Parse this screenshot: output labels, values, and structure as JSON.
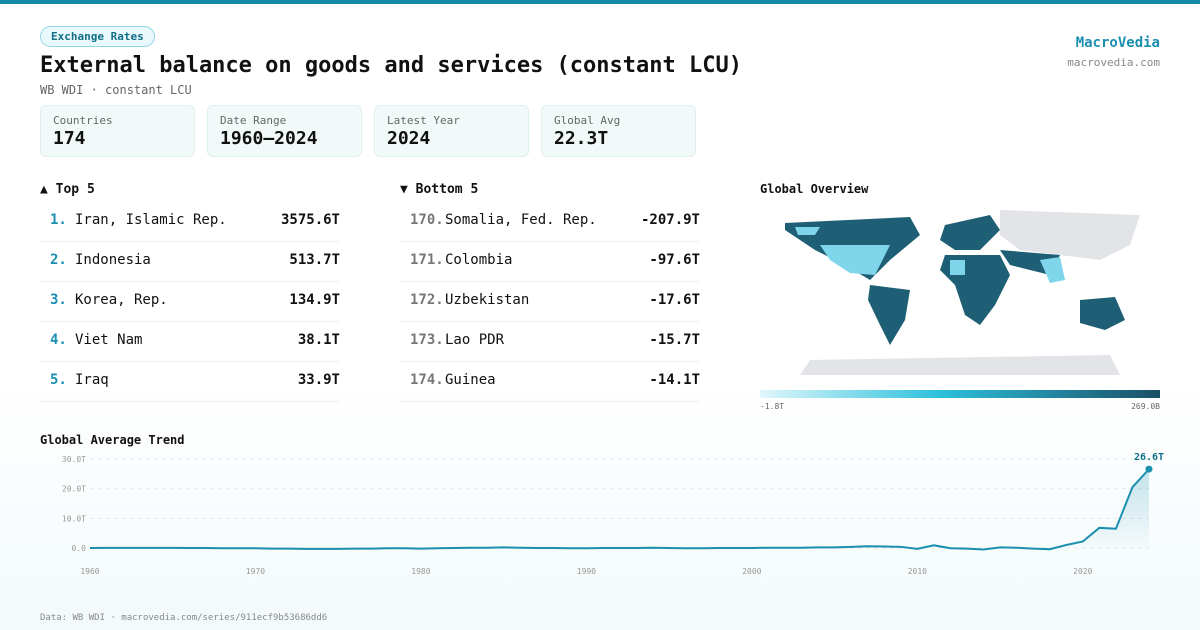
{
  "header": {
    "badge": "Exchange Rates",
    "title": "External balance on goods and services (constant LCU)",
    "subtitle": "WB WDI · constant LCU",
    "brand": "MacroVedia",
    "site": "macrovedia.com"
  },
  "stats": [
    {
      "label": "Countries",
      "value": "174"
    },
    {
      "label": "Date Range",
      "value": "1960–2024"
    },
    {
      "label": "Latest Year",
      "value": "2024"
    },
    {
      "label": "Global Avg",
      "value": "22.3T"
    }
  ],
  "top": {
    "title": "▲ Top 5",
    "rows": [
      {
        "rank": "1.",
        "name": "Iran, Islamic Rep.",
        "value": "3575.6T"
      },
      {
        "rank": "2.",
        "name": "Indonesia",
        "value": "513.7T"
      },
      {
        "rank": "3.",
        "name": "Korea, Rep.",
        "value": "134.9T"
      },
      {
        "rank": "4.",
        "name": "Viet Nam",
        "value": "38.1T"
      },
      {
        "rank": "5.",
        "name": "Iraq",
        "value": "33.9T"
      }
    ]
  },
  "bottom": {
    "title": "▼ Bottom 5",
    "rows": [
      {
        "rank": "170.",
        "name": "Somalia, Fed. Rep.",
        "value": "-207.9T"
      },
      {
        "rank": "171.",
        "name": "Colombia",
        "value": "-97.6T"
      },
      {
        "rank": "172.",
        "name": "Uzbekistan",
        "value": "-17.6T"
      },
      {
        "rank": "173.",
        "name": "Lao PDR",
        "value": "-15.7T"
      },
      {
        "rank": "174.",
        "name": "Guinea",
        "value": "-14.1T"
      }
    ]
  },
  "map": {
    "title": "Global Overview",
    "min_label": "-1.8T",
    "max_label": "269.0B"
  },
  "chart_data": {
    "type": "line",
    "title": "Global Average Trend",
    "color": "#1a8fb0",
    "x": [
      1960,
      1961,
      1962,
      1963,
      1964,
      1965,
      1966,
      1967,
      1968,
      1969,
      1970,
      1971,
      1972,
      1973,
      1974,
      1975,
      1976,
      1977,
      1978,
      1979,
      1980,
      1981,
      1982,
      1983,
      1984,
      1985,
      1986,
      1987,
      1988,
      1989,
      1990,
      1991,
      1992,
      1993,
      1994,
      1995,
      1996,
      1997,
      1998,
      1999,
      2000,
      2001,
      2002,
      2003,
      2004,
      2005,
      2006,
      2007,
      2008,
      2009,
      2010,
      2011,
      2012,
      2013,
      2014,
      2015,
      2016,
      2017,
      2018,
      2019,
      2020,
      2021,
      2022,
      2023,
      2024
    ],
    "values": [
      0,
      0.05,
      0.05,
      0.05,
      0.05,
      0.05,
      0,
      0,
      -0.1,
      -0.1,
      -0.1,
      -0.2,
      -0.2,
      -0.3,
      -0.3,
      -0.3,
      -0.2,
      -0.2,
      -0.1,
      -0.1,
      -0.2,
      -0.1,
      0,
      0.1,
      0.1,
      0.2,
      0.1,
      0,
      0,
      -0.1,
      -0.1,
      0,
      0,
      0,
      0.1,
      0,
      -0.1,
      -0.1,
      0,
      0,
      0,
      0.1,
      0.1,
      0.1,
      0.2,
      0.2,
      0.4,
      0.6,
      0.5,
      0.4,
      -0.3,
      0.9,
      -0.1,
      -0.2,
      -0.5,
      0.2,
      0.1,
      -0.2,
      -0.4,
      1.0,
      2.2,
      6.8,
      6.5,
      20.5,
      26.6
    ],
    "value_labels": [
      null,
      null,
      null,
      null,
      null,
      null,
      null,
      null,
      null,
      null,
      null,
      null,
      null,
      null,
      null,
      null,
      null,
      null,
      null,
      null,
      null,
      null,
      null,
      null,
      null,
      null,
      null,
      null,
      null,
      null,
      null,
      null,
      null,
      null,
      null,
      null,
      null,
      null,
      null,
      null,
      null,
      null,
      null,
      null,
      null,
      null,
      null,
      null,
      null,
      null,
      null,
      null,
      null,
      null,
      null,
      null,
      null,
      null,
      null,
      null,
      null,
      null,
      null,
      null,
      "26.6T"
    ],
    "xlim": [
      1960,
      2024
    ],
    "ylim": [
      -1,
      30
    ],
    "xticks": [
      1960,
      1970,
      1980,
      1990,
      2000,
      2010,
      2020
    ],
    "yticks": [
      {
        "value": 0,
        "label": "0.0"
      },
      {
        "value": 10,
        "label": "10.0T"
      },
      {
        "value": 20,
        "label": "20.0T"
      },
      {
        "value": 30,
        "label": "30.0T"
      }
    ],
    "grid": true
  },
  "footer": "Data: WB WDI · macrovedia.com/series/911ecf9b53686dd6"
}
